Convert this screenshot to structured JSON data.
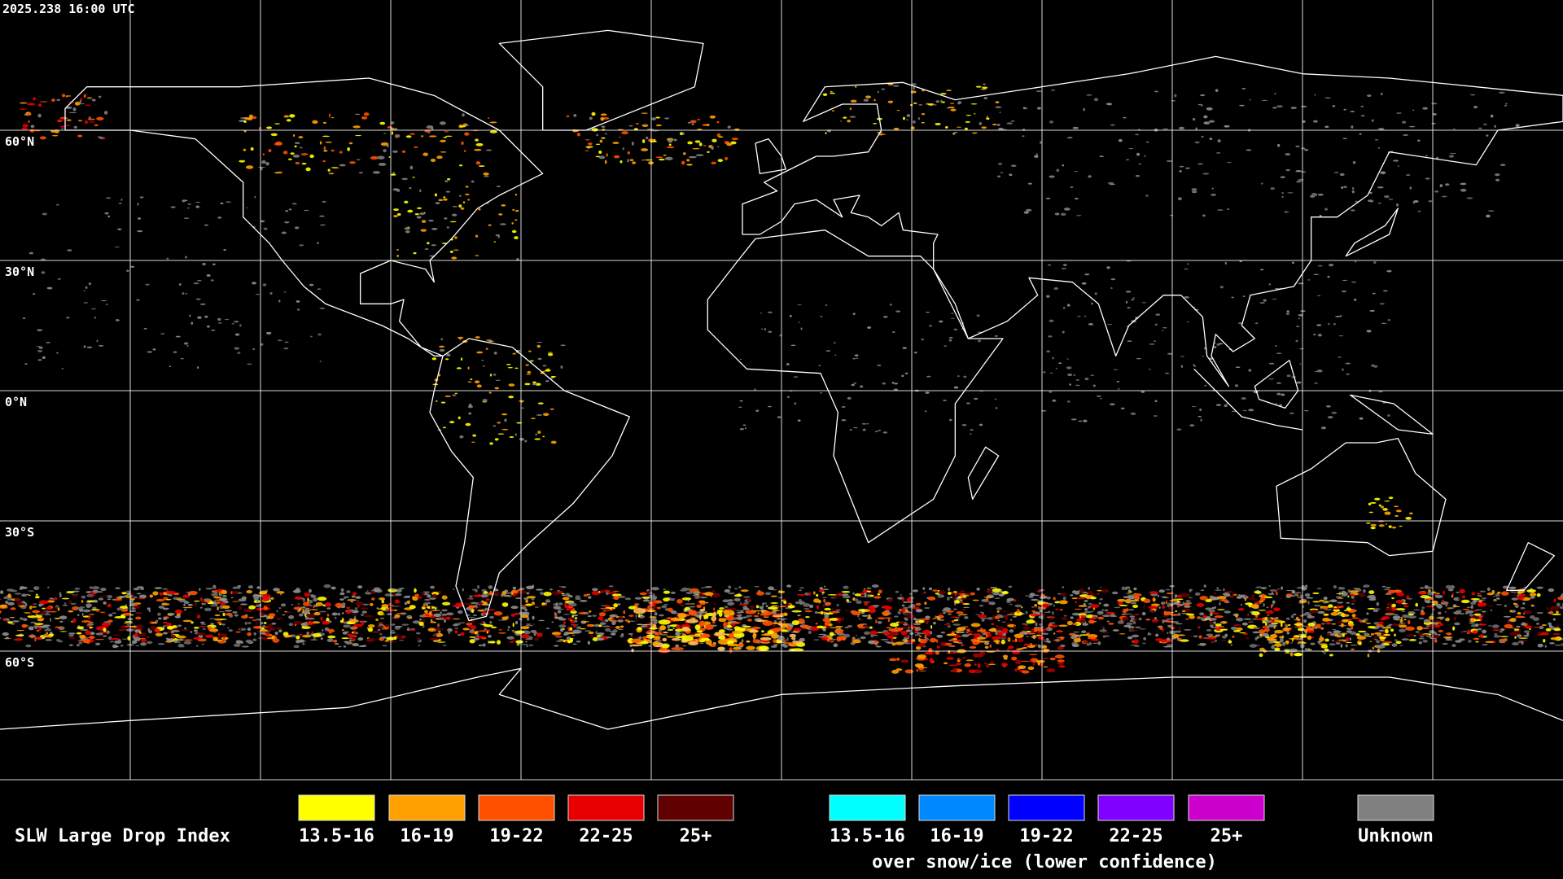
{
  "timestamp": "2025.238 16:00 UTC",
  "latitude_labels": [
    "60°N",
    "30°N",
    "0°N",
    "30°S",
    "60°S"
  ],
  "legend": {
    "title": "SLW Large Drop Index",
    "items": [
      {
        "label": "13.5-16",
        "color": "#ffff00"
      },
      {
        "label": "16-19",
        "color": "#ffa000"
      },
      {
        "label": "19-22",
        "color": "#ff5000"
      },
      {
        "label": "22-25",
        "color": "#e80000"
      },
      {
        "label": "25+",
        "color": "#600000"
      }
    ],
    "snow_items": [
      {
        "label": "13.5-16",
        "color": "#00ffff"
      },
      {
        "label": "16-19",
        "color": "#0088ff"
      },
      {
        "label": "19-22",
        "color": "#0000ff"
      },
      {
        "label": "22-25",
        "color": "#8000ff"
      },
      {
        "label": "25+",
        "color": "#cc00cc"
      }
    ],
    "snow_note": "over snow/ice (lower confidence)",
    "unknown": {
      "label": "Unknown",
      "color": "#808080"
    }
  }
}
